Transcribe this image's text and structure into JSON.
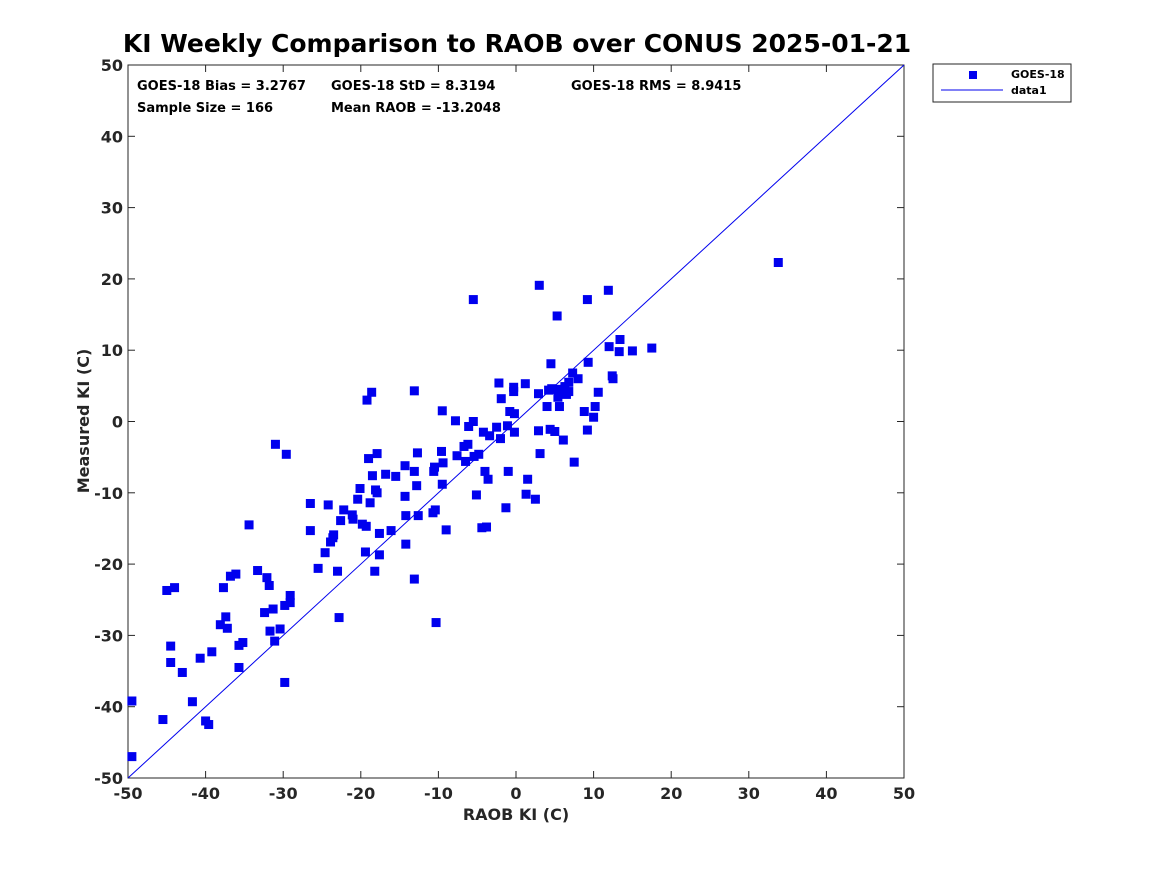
{
  "chart_data": {
    "type": "scatter",
    "title": "KI Weekly Comparison to RAOB over CONUS 2025-01-21",
    "xlabel": "RAOB KI (C)",
    "ylabel": "Measured KI (C)",
    "xlim": [
      -50,
      50
    ],
    "ylim": [
      -50,
      50
    ],
    "xticks": [
      -50,
      -40,
      -30,
      -20,
      -10,
      0,
      10,
      20,
      30,
      40,
      50
    ],
    "yticks": [
      -50,
      -40,
      -30,
      -20,
      -10,
      0,
      10,
      20,
      30,
      40,
      50
    ],
    "xtick_labels": [
      "-50",
      "-40",
      "-30",
      "-20",
      "-10",
      "0",
      "10",
      "20",
      "30",
      "40",
      "50"
    ],
    "ytick_labels": [
      "-50",
      "-40",
      "-30",
      "-20",
      "-10",
      "0",
      "10",
      "20",
      "30",
      "40",
      "50"
    ],
    "grid": false,
    "legend_position": "outside top-right",
    "stats": {
      "bias": "GOES-18 Bias = 3.2767",
      "std": "GOES-18 StD = 8.3194",
      "rms": "GOES-18 RMS = 8.9415",
      "sample_size": "Sample Size = 166",
      "mean_raob": "Mean RAOB = -13.2048"
    },
    "series": [
      {
        "name": "GOES-18",
        "marker": "square",
        "color": "#0000ee",
        "points": [
          [
            -49.5,
            -47
          ],
          [
            -49.5,
            -39.2
          ],
          [
            -45.5,
            -41.8
          ],
          [
            -45,
            -23.7
          ],
          [
            -44.5,
            -31.5
          ],
          [
            -44.5,
            -33.8
          ],
          [
            -44,
            -23.3
          ],
          [
            -43,
            -35.2
          ],
          [
            -41.7,
            -39.3
          ],
          [
            -40.7,
            -33.2
          ],
          [
            -40,
            -42
          ],
          [
            -39.6,
            -42.5
          ],
          [
            -39.2,
            -32.3
          ],
          [
            -38.1,
            -28.5
          ],
          [
            -37.7,
            -23.3
          ],
          [
            -37.4,
            -27.4
          ],
          [
            -37.2,
            -29
          ],
          [
            -36.8,
            -21.7
          ],
          [
            -36.1,
            -21.4
          ],
          [
            -35.7,
            -31.4
          ],
          [
            -35.7,
            -34.5
          ],
          [
            -35.2,
            -31
          ],
          [
            -34.4,
            -14.5
          ],
          [
            -33.3,
            -20.9
          ],
          [
            -32.4,
            -26.8
          ],
          [
            -32.1,
            -21.9
          ],
          [
            -31.8,
            -23
          ],
          [
            -31.7,
            -29.4
          ],
          [
            -31.3,
            -26.3
          ],
          [
            -31.1,
            -30.8
          ],
          [
            -31,
            -3.2
          ],
          [
            -30.4,
            -29.1
          ],
          [
            -29.8,
            -25.8
          ],
          [
            -29.8,
            -36.6
          ],
          [
            -29.6,
            -4.6
          ],
          [
            -29.1,
            -24.4
          ],
          [
            -29.1,
            -25.4
          ],
          [
            -26.5,
            -11.5
          ],
          [
            -26.5,
            -15.3
          ],
          [
            -25.5,
            -20.6
          ],
          [
            -24.6,
            -18.4
          ],
          [
            -24.2,
            -11.7
          ],
          [
            -23.9,
            -16.9
          ],
          [
            -23.6,
            -16.3
          ],
          [
            -23.5,
            -15.9
          ],
          [
            -23.0,
            -21
          ],
          [
            -22.8,
            -27.5
          ],
          [
            -22.6,
            -13.9
          ],
          [
            -22.2,
            -12.4
          ],
          [
            -21.1,
            -13.1
          ],
          [
            -21,
            -13.7
          ],
          [
            -20.4,
            -10.9
          ],
          [
            -20.1,
            -9.4
          ],
          [
            -19.8,
            -14.4
          ],
          [
            -19.4,
            -18.3
          ],
          [
            -19.3,
            -14.7
          ],
          [
            -19.2,
            3
          ],
          [
            -19,
            -5.2
          ],
          [
            -18.8,
            -11.4
          ],
          [
            -18.6,
            4.1
          ],
          [
            -18.5,
            -7.6
          ],
          [
            -18.2,
            -21
          ],
          [
            -18.1,
            -9.6
          ],
          [
            -17.9,
            -10
          ],
          [
            -17.9,
            -4.5
          ],
          [
            -17.6,
            -18.7
          ],
          [
            -17.6,
            -15.7
          ],
          [
            -16.8,
            -7.4
          ],
          [
            -16.1,
            -15.3
          ],
          [
            -15.5,
            -7.7
          ],
          [
            -14.3,
            -6.2
          ],
          [
            -14.3,
            -10.5
          ],
          [
            -14.2,
            -13.2
          ],
          [
            -14.2,
            -17.2
          ],
          [
            -13.1,
            4.3
          ],
          [
            -13.1,
            -7
          ],
          [
            -13.1,
            -22.1
          ],
          [
            -12.8,
            -9
          ],
          [
            -12.7,
            -4.4
          ],
          [
            -12.6,
            -13.2
          ],
          [
            -10.7,
            -12.8
          ],
          [
            -10.6,
            -7
          ],
          [
            -10.5,
            -6.4
          ],
          [
            -10.4,
            -12.4
          ],
          [
            -10.3,
            -28.2
          ],
          [
            -9.6,
            -4.2
          ],
          [
            -9.5,
            1.5
          ],
          [
            -9.5,
            -8.8
          ],
          [
            -9.4,
            -5.8
          ],
          [
            -9,
            -15.2
          ],
          [
            -7.8,
            0.1
          ],
          [
            -7.6,
            -4.8
          ],
          [
            -6.7,
            -3.5
          ],
          [
            -6.5,
            -5.6
          ],
          [
            -6.2,
            -3.2
          ],
          [
            -6.1,
            -0.7
          ],
          [
            -5.5,
            17.1
          ],
          [
            -5.5,
            0
          ],
          [
            -5.4,
            -4.9
          ],
          [
            -5.1,
            -10.3
          ],
          [
            -4.8,
            -4.6
          ],
          [
            -4.4,
            -14.9
          ],
          [
            -4.2,
            -1.5
          ],
          [
            -4,
            -7
          ],
          [
            -3.8,
            -14.8
          ],
          [
            -3.6,
            -8.1
          ],
          [
            -3.4,
            -2
          ],
          [
            -2.5,
            -0.8
          ],
          [
            -2.2,
            5.4
          ],
          [
            -2.0,
            -2.4
          ],
          [
            -1.9,
            3.2
          ],
          [
            -1.3,
            -12.1
          ],
          [
            -1.1,
            -0.6
          ],
          [
            -1,
            -7
          ],
          [
            -0.8,
            1.4
          ],
          [
            -0.3,
            4.2
          ],
          [
            -0.3,
            4.8
          ],
          [
            -0.2,
            1.1
          ],
          [
            -0.2,
            -1.5
          ],
          [
            1.2,
            5.3
          ],
          [
            1.3,
            -10.2
          ],
          [
            1.5,
            -8.1
          ],
          [
            2.5,
            -10.9
          ],
          [
            2.9,
            3.9
          ],
          [
            2.9,
            -1.3
          ],
          [
            3,
            19.1
          ],
          [
            3.1,
            -4.5
          ],
          [
            4.0,
            2.1
          ],
          [
            4.2,
            4.4
          ],
          [
            4.4,
            -1.1
          ],
          [
            4.5,
            8.1
          ],
          [
            4.6,
            4.6
          ],
          [
            5,
            -1.4
          ],
          [
            5.2,
            4.5
          ],
          [
            5.3,
            14.8
          ],
          [
            5.4,
            3.4
          ],
          [
            5.6,
            2.1
          ],
          [
            5.8,
            4.5
          ],
          [
            6.1,
            -2.6
          ],
          [
            6.3,
            4.9
          ],
          [
            6.5,
            3.8
          ],
          [
            6.8,
            4.2
          ],
          [
            6.8,
            5.5
          ],
          [
            7.3,
            6.8
          ],
          [
            7.5,
            -5.7
          ],
          [
            8.0,
            6
          ],
          [
            8.8,
            1.4
          ],
          [
            9.2,
            17.1
          ],
          [
            9.2,
            -1.2
          ],
          [
            9.3,
            8.3
          ],
          [
            10,
            0.6
          ],
          [
            10.2,
            2.1
          ],
          [
            10.6,
            4.1
          ],
          [
            11.9,
            18.4
          ],
          [
            12.0,
            10.5
          ],
          [
            12.4,
            6.4
          ],
          [
            12.5,
            6
          ],
          [
            13.3,
            9.8
          ],
          [
            13.4,
            11.5
          ],
          [
            15,
            9.9
          ],
          [
            17.5,
            10.3
          ],
          [
            33.8,
            22.3
          ]
        ]
      },
      {
        "name": "data1",
        "style": "line",
        "color": "#0000ee",
        "points": [
          [
            -50,
            -50
          ],
          [
            50,
            50
          ]
        ]
      }
    ]
  }
}
